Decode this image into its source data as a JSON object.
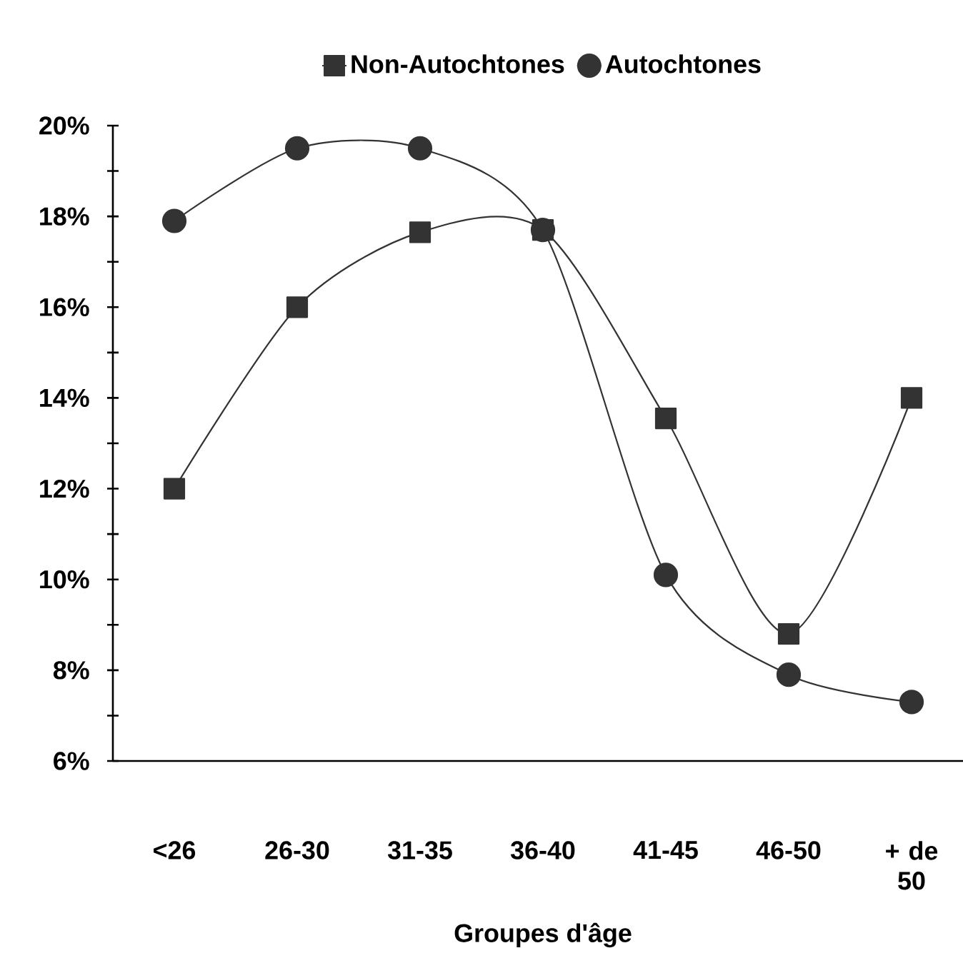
{
  "chart_data": {
    "type": "line",
    "xlabel": "Groupes d'âge",
    "categories": [
      "<26",
      "26-30",
      "31-35",
      "36-40",
      "41-45",
      "46-50",
      "+ de 50"
    ],
    "series": [
      {
        "name": "Non-Autochtones",
        "color": "#333333",
        "marker": "square",
        "values": [
          12.0,
          16.0,
          17.65,
          17.7,
          13.55,
          8.8,
          14.0
        ]
      },
      {
        "name": "Autochtones",
        "color": "#333333",
        "marker": "circle",
        "values": [
          17.9,
          19.5,
          19.5,
          17.7,
          10.1,
          7.9,
          7.3
        ]
      }
    ],
    "ylim": [
      6,
      20
    ],
    "yticks": [
      {
        "value": 6,
        "label": "6%"
      },
      {
        "value": 7,
        "label": null
      },
      {
        "value": 8,
        "label": "8%"
      },
      {
        "value": 9,
        "label": null
      },
      {
        "value": 10,
        "label": "10%"
      },
      {
        "value": 11,
        "label": null
      },
      {
        "value": 12,
        "label": "12%"
      },
      {
        "value": 13,
        "label": null
      },
      {
        "value": 14,
        "label": "14%"
      },
      {
        "value": 15,
        "label": null
      },
      {
        "value": 16,
        "label": "16%"
      },
      {
        "value": 17,
        "label": null
      },
      {
        "value": 18,
        "label": "18%"
      },
      {
        "value": 19,
        "label": null
      },
      {
        "value": 20,
        "label": "20%"
      }
    ],
    "grid": false,
    "legend": "top",
    "line_style": "solid"
  }
}
